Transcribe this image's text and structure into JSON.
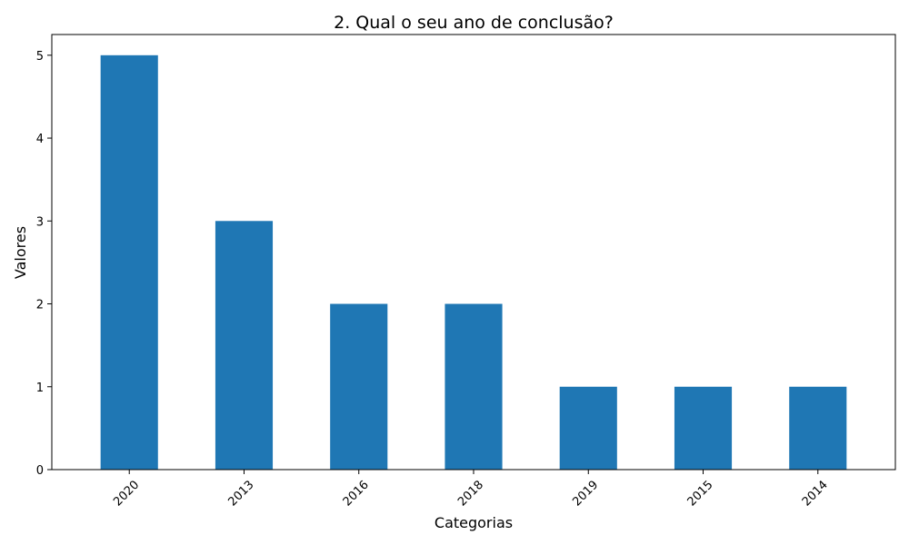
{
  "chart_data": {
    "type": "bar",
    "title": "2. Qual o seu ano de conclusão?",
    "xlabel": "Categorias",
    "ylabel": "Valores",
    "categories": [
      "2020",
      "2013",
      "2016",
      "2018",
      "2019",
      "2015",
      "2014"
    ],
    "values": [
      5,
      3,
      2,
      2,
      1,
      1,
      1
    ],
    "ylim": [
      0,
      5.25
    ],
    "yticks": [
      "0",
      "1",
      "2",
      "3",
      "4",
      "5"
    ],
    "x_tick_rotation": "45 degrees",
    "grid": false,
    "legend": "none",
    "bar_color": "#1f77b4"
  }
}
